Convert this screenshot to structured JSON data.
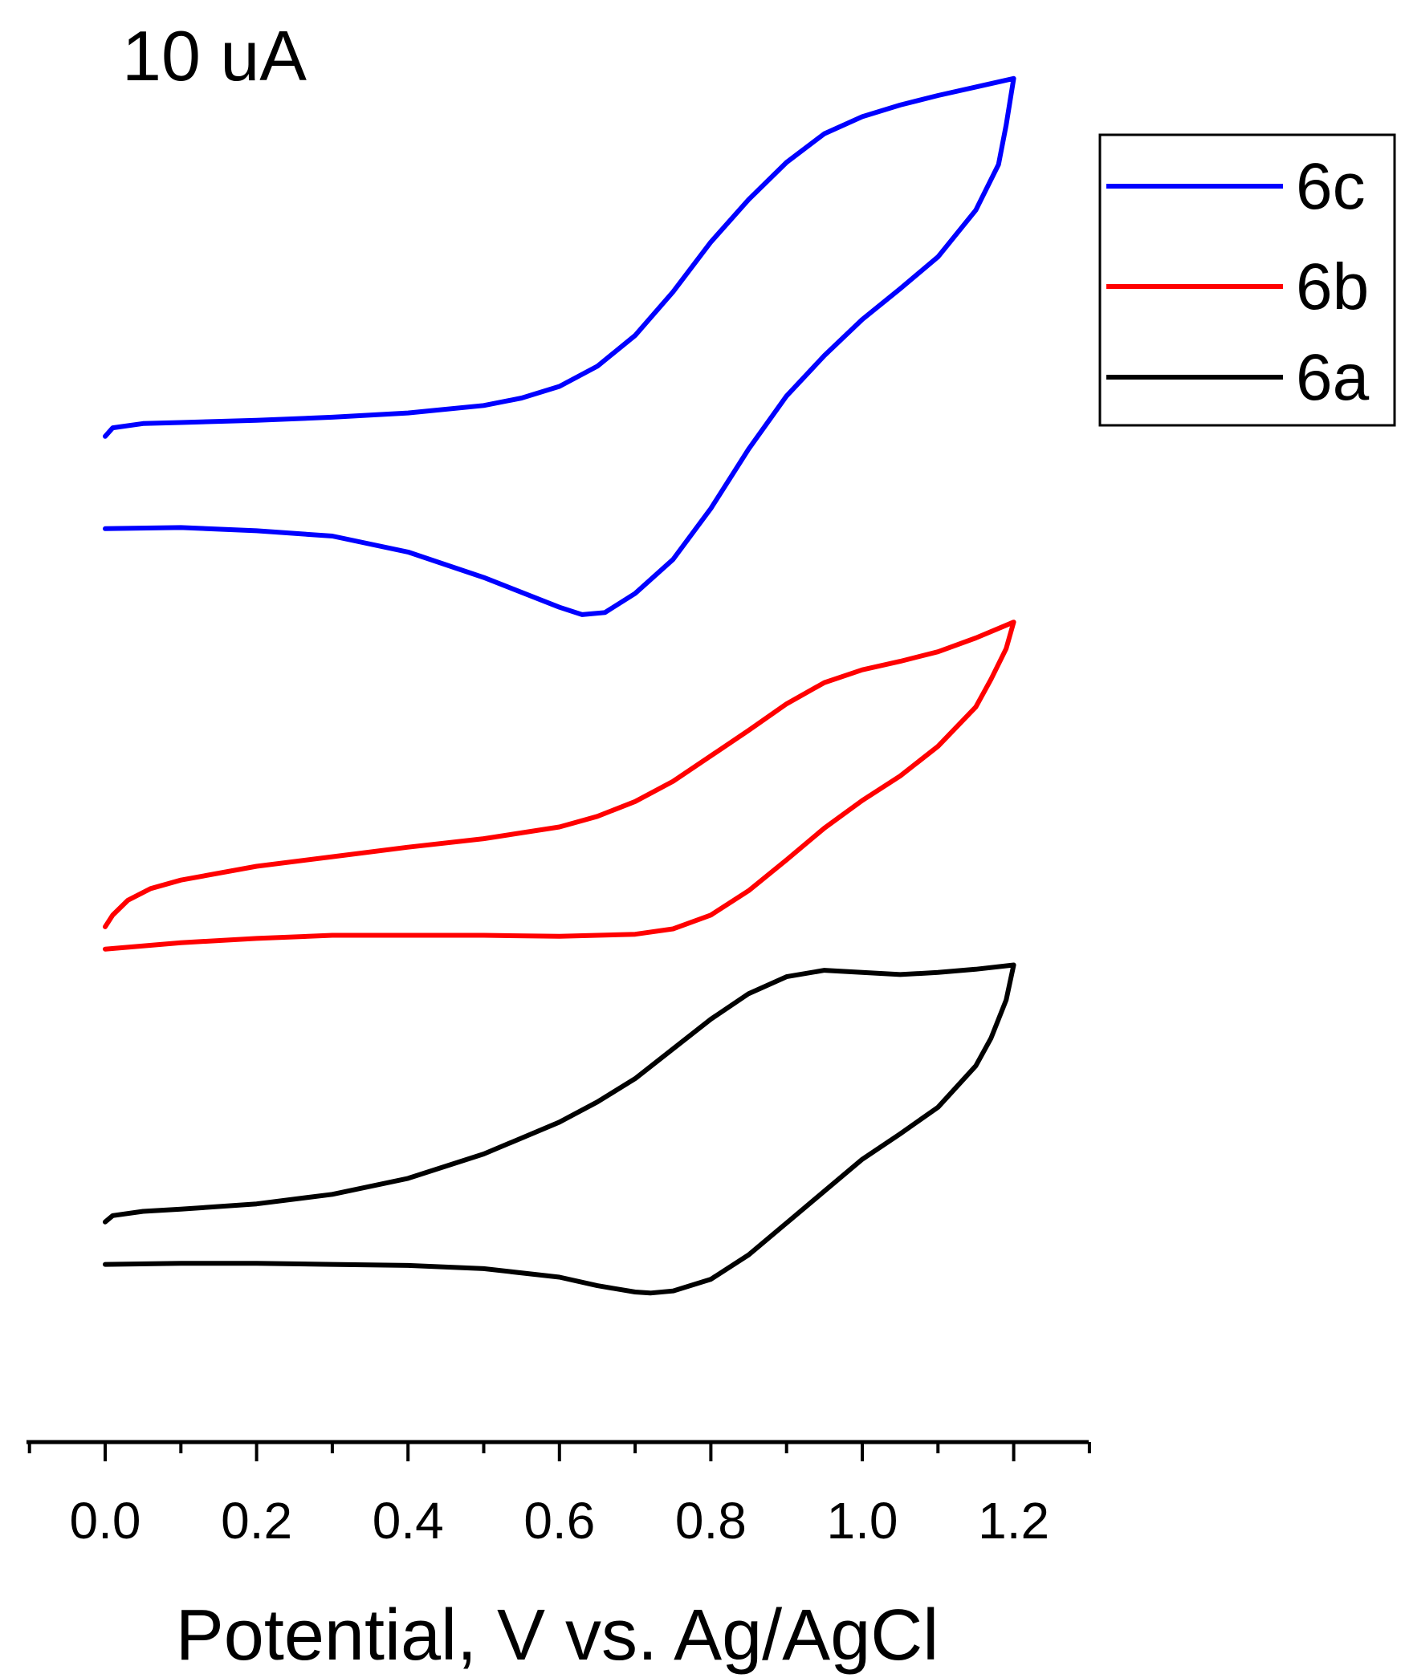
{
  "chart_data": {
    "type": "line",
    "scale_bar_label": "10 uA",
    "xlabel": "Potential, V vs. Ag/AgCl",
    "ylabel": "",
    "xlim": [
      -0.1,
      1.3
    ],
    "x_ticks": [
      "0.0",
      "0.2",
      "0.4",
      "0.6",
      "0.8",
      "1.0",
      "1.2"
    ],
    "y_axis_shown": false,
    "grid": false,
    "legend_position": "top-right",
    "legend": [
      "6c",
      "6b",
      "6a"
    ],
    "y_units_note": "current in uA, traces vertically offset for clarity",
    "series": [
      {
        "name": "6c",
        "color": "#0000ff",
        "forward": [
          [
            0.0,
            9.7
          ],
          [
            0.01,
            10.5
          ],
          [
            0.05,
            10.9
          ],
          [
            0.1,
            11.0
          ],
          [
            0.2,
            11.2
          ],
          [
            0.3,
            11.5
          ],
          [
            0.4,
            11.9
          ],
          [
            0.5,
            12.6
          ],
          [
            0.55,
            13.3
          ],
          [
            0.6,
            14.4
          ],
          [
            0.65,
            16.3
          ],
          [
            0.7,
            19.2
          ],
          [
            0.75,
            23.3
          ],
          [
            0.8,
            28.0
          ],
          [
            0.85,
            32.0
          ],
          [
            0.9,
            35.5
          ],
          [
            0.95,
            38.2
          ],
          [
            1.0,
            39.8
          ],
          [
            1.05,
            40.9
          ],
          [
            1.1,
            41.8
          ],
          [
            1.15,
            42.6
          ],
          [
            1.2,
            43.4
          ]
        ],
        "reverse": [
          [
            1.2,
            43.4
          ],
          [
            1.19,
            39.0
          ],
          [
            1.18,
            35.3
          ],
          [
            1.15,
            31.0
          ],
          [
            1.1,
            26.6
          ],
          [
            1.05,
            23.6
          ],
          [
            1.0,
            20.7
          ],
          [
            0.95,
            17.3
          ],
          [
            0.9,
            13.5
          ],
          [
            0.85,
            8.5
          ],
          [
            0.8,
            2.9
          ],
          [
            0.75,
            -1.9
          ],
          [
            0.7,
            -5.1
          ],
          [
            0.66,
            -6.9
          ],
          [
            0.63,
            -7.1
          ],
          [
            0.6,
            -6.4
          ],
          [
            0.5,
            -3.6
          ],
          [
            0.4,
            -1.2
          ],
          [
            0.3,
            0.3
          ],
          [
            0.2,
            0.8
          ],
          [
            0.1,
            1.1
          ],
          [
            0.0,
            1.0
          ]
        ]
      },
      {
        "name": "6b",
        "color": "#ff0000",
        "forward": [
          [
            0.0,
            -36.5
          ],
          [
            0.01,
            -35.4
          ],
          [
            0.03,
            -34.0
          ],
          [
            0.06,
            -32.9
          ],
          [
            0.1,
            -32.1
          ],
          [
            0.2,
            -30.8
          ],
          [
            0.3,
            -29.9
          ],
          [
            0.4,
            -29.0
          ],
          [
            0.5,
            -28.2
          ],
          [
            0.6,
            -27.1
          ],
          [
            0.65,
            -26.1
          ],
          [
            0.7,
            -24.7
          ],
          [
            0.75,
            -22.8
          ],
          [
            0.8,
            -20.4
          ],
          [
            0.85,
            -18.0
          ],
          [
            0.9,
            -15.5
          ],
          [
            0.95,
            -13.5
          ],
          [
            1.0,
            -12.3
          ],
          [
            1.05,
            -11.5
          ],
          [
            1.1,
            -10.6
          ],
          [
            1.15,
            -9.3
          ],
          [
            1.2,
            -7.8
          ]
        ],
        "reverse": [
          [
            1.2,
            -7.8
          ],
          [
            1.19,
            -10.3
          ],
          [
            1.17,
            -13.2
          ],
          [
            1.15,
            -15.8
          ],
          [
            1.1,
            -19.5
          ],
          [
            1.05,
            -22.3
          ],
          [
            1.0,
            -24.6
          ],
          [
            0.95,
            -27.2
          ],
          [
            0.9,
            -30.2
          ],
          [
            0.85,
            -33.1
          ],
          [
            0.8,
            -35.4
          ],
          [
            0.75,
            -36.7
          ],
          [
            0.7,
            -37.2
          ],
          [
            0.6,
            -37.4
          ],
          [
            0.5,
            -37.3
          ],
          [
            0.4,
            -37.3
          ],
          [
            0.3,
            -37.3
          ],
          [
            0.2,
            -37.6
          ],
          [
            0.1,
            -38.0
          ],
          [
            0.0,
            -38.6
          ]
        ]
      },
      {
        "name": "6a",
        "color": "#000000",
        "forward": [
          [
            0.0,
            -64.3
          ],
          [
            0.01,
            -63.7
          ],
          [
            0.05,
            -63.3
          ],
          [
            0.1,
            -63.1
          ],
          [
            0.2,
            -62.6
          ],
          [
            0.3,
            -61.7
          ],
          [
            0.4,
            -60.2
          ],
          [
            0.5,
            -57.9
          ],
          [
            0.6,
            -54.9
          ],
          [
            0.65,
            -53.0
          ],
          [
            0.7,
            -50.8
          ],
          [
            0.75,
            -48.0
          ],
          [
            0.8,
            -45.2
          ],
          [
            0.85,
            -42.8
          ],
          [
            0.9,
            -41.2
          ],
          [
            0.95,
            -40.6
          ],
          [
            1.0,
            -40.8
          ],
          [
            1.05,
            -41.0
          ],
          [
            1.1,
            -40.8
          ],
          [
            1.15,
            -40.5
          ],
          [
            1.2,
            -40.1
          ]
        ],
        "reverse": [
          [
            1.2,
            -40.1
          ],
          [
            1.19,
            -43.4
          ],
          [
            1.17,
            -47.0
          ],
          [
            1.15,
            -49.6
          ],
          [
            1.1,
            -53.5
          ],
          [
            1.05,
            -56.0
          ],
          [
            1.0,
            -58.4
          ],
          [
            0.95,
            -61.4
          ],
          [
            0.9,
            -64.4
          ],
          [
            0.85,
            -67.4
          ],
          [
            0.8,
            -69.7
          ],
          [
            0.75,
            -70.8
          ],
          [
            0.72,
            -71.0
          ],
          [
            0.7,
            -70.9
          ],
          [
            0.65,
            -70.3
          ],
          [
            0.6,
            -69.5
          ],
          [
            0.5,
            -68.7
          ],
          [
            0.4,
            -68.4
          ],
          [
            0.3,
            -68.3
          ],
          [
            0.2,
            -68.2
          ],
          [
            0.1,
            -68.2
          ],
          [
            0.0,
            -68.3
          ]
        ]
      }
    ]
  }
}
